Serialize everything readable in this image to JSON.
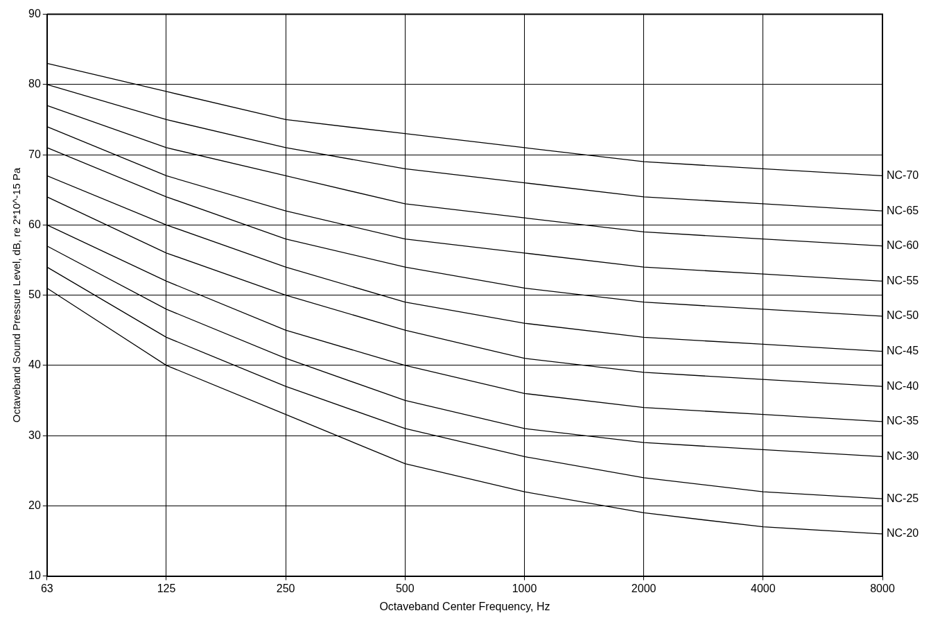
{
  "chart_data": {
    "type": "line",
    "xlabel": "Octaveband Center Frequency, Hz",
    "ylabel": "Octaveband Sound Pressure Level, dB, re 2*10^-15 Pa",
    "categories": [
      "63",
      "125",
      "250",
      "500",
      "1000",
      "2000",
      "4000",
      "8000"
    ],
    "ylim": [
      10,
      90
    ],
    "yticks": [
      10,
      20,
      30,
      40,
      50,
      60,
      70,
      80,
      90
    ],
    "grid": true,
    "legend": false,
    "series": [
      {
        "name": "NC-70",
        "color": "#000000",
        "values": [
          83,
          79,
          75,
          73,
          71,
          69,
          68,
          67
        ]
      },
      {
        "name": "NC-65",
        "color": "#000000",
        "values": [
          80,
          75,
          71,
          68,
          66,
          64,
          63,
          62
        ]
      },
      {
        "name": "NC-60",
        "color": "#000000",
        "values": [
          77,
          71,
          67,
          63,
          61,
          59,
          58,
          57
        ]
      },
      {
        "name": "NC-55",
        "color": "#000000",
        "values": [
          74,
          67,
          62,
          58,
          56,
          54,
          53,
          52
        ]
      },
      {
        "name": "NC-50",
        "color": "#000000",
        "values": [
          71,
          64,
          58,
          54,
          51,
          49,
          48,
          47
        ]
      },
      {
        "name": "NC-45",
        "color": "#000000",
        "values": [
          67,
          60,
          54,
          49,
          46,
          44,
          43,
          42
        ]
      },
      {
        "name": "NC-40",
        "color": "#000000",
        "values": [
          64,
          56,
          50,
          45,
          41,
          39,
          38,
          37
        ]
      },
      {
        "name": "NC-35",
        "color": "#000000",
        "values": [
          60,
          52,
          45,
          40,
          36,
          34,
          33,
          32
        ]
      },
      {
        "name": "NC-30",
        "color": "#000000",
        "values": [
          57,
          48,
          41,
          35,
          31,
          29,
          28,
          27
        ]
      },
      {
        "name": "NC-25",
        "color": "#000000",
        "values": [
          54,
          44,
          37,
          31,
          27,
          24,
          22,
          21
        ]
      },
      {
        "name": "NC-20",
        "color": "#000000",
        "values": [
          51,
          40,
          33,
          26,
          22,
          19,
          17,
          16
        ]
      }
    ]
  }
}
